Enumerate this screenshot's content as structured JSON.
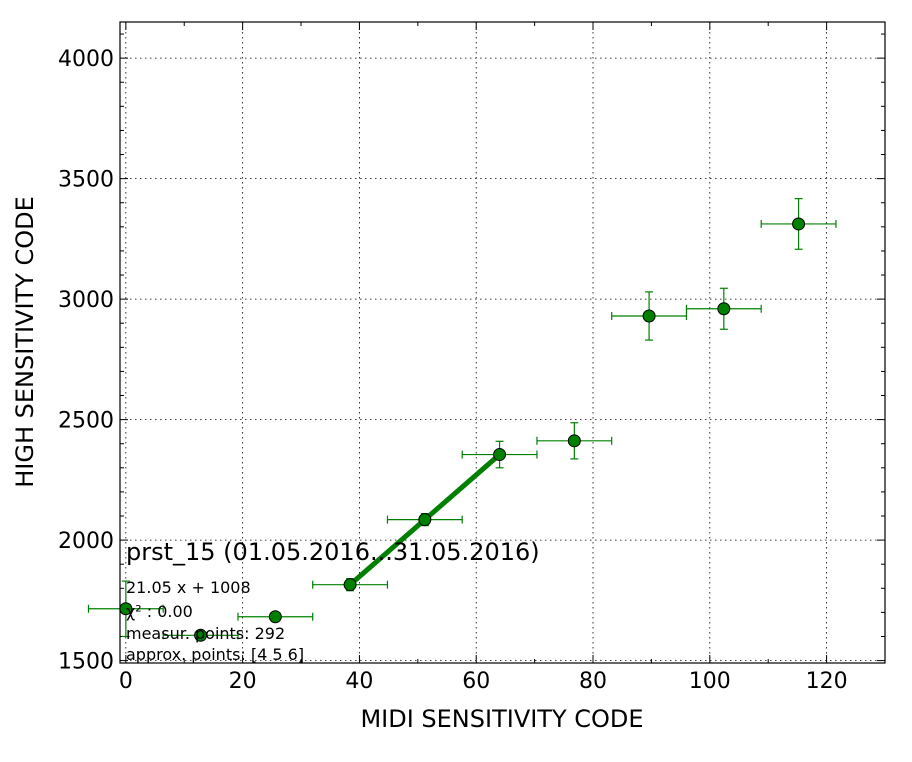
{
  "chart_data": {
    "type": "scatter",
    "xlabel": "MIDI SENSITIVITY CODE",
    "ylabel": "HIGH SENSITIVITY CODE",
    "xlim": [
      -1,
      130
    ],
    "ylim": [
      1490,
      4150
    ],
    "x_ticks": [
      0,
      20,
      40,
      60,
      80,
      100,
      120
    ],
    "y_ticks": [
      1500,
      2000,
      2500,
      3000,
      3500,
      4000
    ],
    "grid": true,
    "marker_color": "#008000",
    "line_color": "#008000",
    "points": [
      {
        "x": 0,
        "y": 1715,
        "xerr": 6.4,
        "yerr": 115
      },
      {
        "x": 12.8,
        "y": 1605,
        "xerr": 6.4,
        "yerr": 0
      },
      {
        "x": 25.6,
        "y": 1682,
        "xerr": 6.4,
        "yerr": 0
      },
      {
        "x": 38.4,
        "y": 1815,
        "xerr": 6.4,
        "yerr": 25
      },
      {
        "x": 51.2,
        "y": 2085,
        "xerr": 6.4,
        "yerr": 25
      },
      {
        "x": 64,
        "y": 2355,
        "xerr": 6.4,
        "yerr": 55
      },
      {
        "x": 76.8,
        "y": 2412,
        "xerr": 6.4,
        "yerr": 75
      },
      {
        "x": 89.6,
        "y": 2930,
        "xerr": 6.4,
        "yerr": 100
      },
      {
        "x": 102.4,
        "y": 2960,
        "xerr": 6.4,
        "yerr": 85
      },
      {
        "x": 115.2,
        "y": 3312,
        "xerr": 6.4,
        "yerr": 105
      }
    ],
    "fit_line": {
      "x": [
        38.4,
        64
      ],
      "y": [
        1815,
        2355
      ]
    },
    "annotation": {
      "title": "prst_15 (01.05.2016...31.05.2016)",
      "lines": [
        "21.05 x + 1008",
        "χ² : 0.00",
        "measur. points: 292",
        "approx. points: [4 5 6]"
      ]
    }
  }
}
